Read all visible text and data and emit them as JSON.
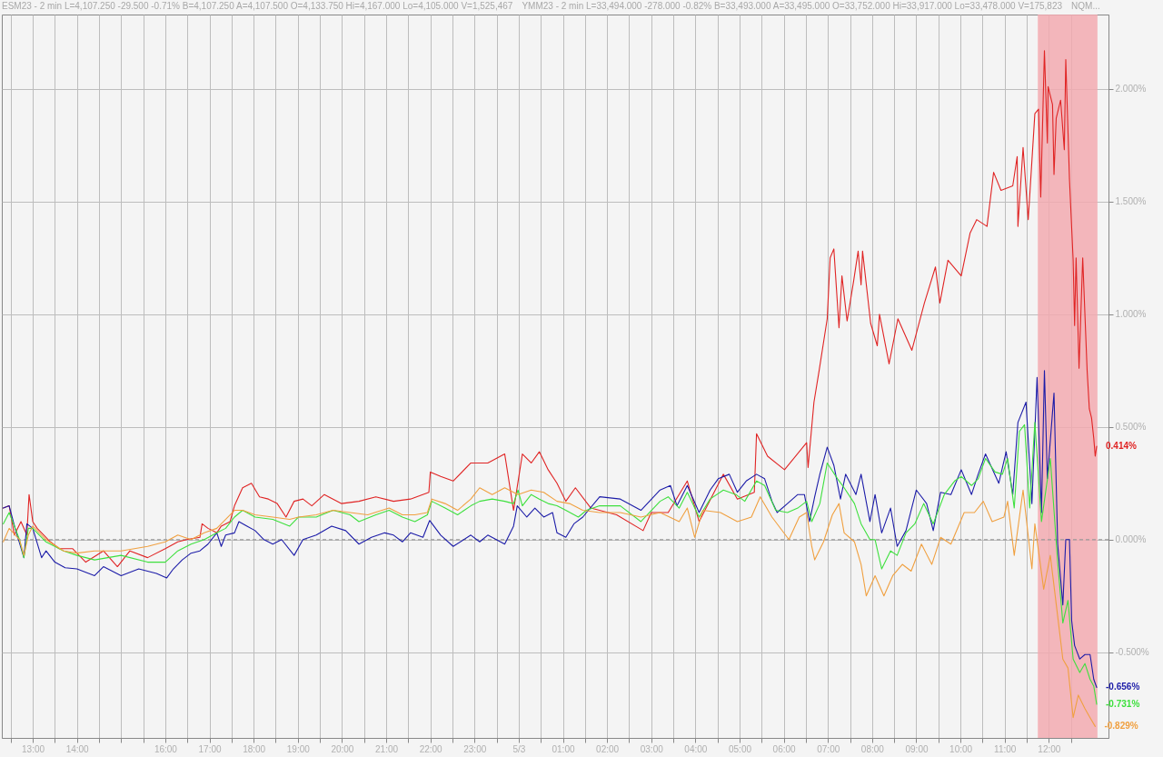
{
  "chart_data": {
    "type": "line",
    "annotations": [
      "ESM23 - 2 min L=4,107.250 -29.500 -0.71% B=4,107.250 A=4,107.500 O=4,133.750 Hi=4,167.000 Lo=4,105.000 V=1,525,467",
      "YMM23 - 2 min L=33,494.000 -278.000 -0.82% B=33,493.000 A=33,495.000 O=33,752.000 Hi=33,917.000 Lo=33,478.000 V=175,823",
      "NQM..."
    ],
    "xlim": [
      "--05-02T12:18",
      "--05-03T13:21"
    ],
    "xticks": [
      {
        "value": "--05-02T12:30",
        "label": null
      },
      {
        "value": "--05-02T13:00",
        "label": "13:00"
      },
      {
        "value": "--05-02T13:30",
        "label": null
      },
      {
        "value": "--05-02T14:00",
        "label": "14:00"
      },
      {
        "value": "--05-02T14:30",
        "label": null
      },
      {
        "value": "--05-02T15:00",
        "label": null
      },
      {
        "value": "--05-02T15:30",
        "label": null
      },
      {
        "value": "--05-02T16:00",
        "label": "16:00"
      },
      {
        "value": "--05-02T16:30",
        "label": null
      },
      {
        "value": "--05-02T17:00",
        "label": "17:00"
      },
      {
        "value": "--05-02T17:30",
        "label": null
      },
      {
        "value": "--05-02T18:00",
        "label": "18:00"
      },
      {
        "value": "--05-02T18:30",
        "label": null
      },
      {
        "value": "--05-02T19:00",
        "label": "19:00"
      },
      {
        "value": "--05-02T19:30",
        "label": null
      },
      {
        "value": "--05-02T20:00",
        "label": "20:00"
      },
      {
        "value": "--05-02T20:30",
        "label": null
      },
      {
        "value": "--05-02T21:00",
        "label": "21:00"
      },
      {
        "value": "--05-02T21:30",
        "label": null
      },
      {
        "value": "--05-02T22:00",
        "label": "22:00"
      },
      {
        "value": "--05-02T22:30",
        "label": null
      },
      {
        "value": "--05-02T23:00",
        "label": "23:00"
      },
      {
        "value": "--05-02T23:30",
        "label": null
      },
      {
        "value": "--05-03T00:00",
        "label": "5/3"
      },
      {
        "value": "--05-03T00:30",
        "label": null
      },
      {
        "value": "--05-03T01:00",
        "label": "01:00"
      },
      {
        "value": "--05-03T01:30",
        "label": null
      },
      {
        "value": "--05-03T02:00",
        "label": "02:00"
      },
      {
        "value": "--05-03T02:30",
        "label": null
      },
      {
        "value": "--05-03T03:00",
        "label": "03:00"
      },
      {
        "value": "--05-03T03:30",
        "label": null
      },
      {
        "value": "--05-03T04:00",
        "label": "04:00"
      },
      {
        "value": "--05-03T04:30",
        "label": null
      },
      {
        "value": "--05-03T05:00",
        "label": "05:00"
      },
      {
        "value": "--05-03T05:30",
        "label": null
      },
      {
        "value": "--05-03T06:00",
        "label": "06:00"
      },
      {
        "value": "--05-03T06:30",
        "label": null
      },
      {
        "value": "--05-03T07:00",
        "label": "07:00"
      },
      {
        "value": "--05-03T07:30",
        "label": null
      },
      {
        "value": "--05-03T08:00",
        "label": "08:00"
      },
      {
        "value": "--05-03T08:30",
        "label": null
      },
      {
        "value": "--05-03T09:00",
        "label": "09:00"
      },
      {
        "value": "--05-03T09:30",
        "label": null
      },
      {
        "value": "--05-03T10:00",
        "label": "10:00"
      },
      {
        "value": "--05-03T10:30",
        "label": null
      },
      {
        "value": "--05-03T11:00",
        "label": "11:00"
      },
      {
        "value": "--05-03T11:30",
        "label": null
      },
      {
        "value": "--05-03T12:00",
        "label": "12:00"
      },
      {
        "value": "--05-03T12:30",
        "label": null
      }
    ],
    "ylim": [
      -0.88,
      2.33
    ],
    "yticks": [
      {
        "value": -0.5,
        "label": "-0.500%"
      },
      {
        "value": 0,
        "label": "0.000%"
      },
      {
        "value": 0.5,
        "label": "0.500%"
      },
      {
        "value": 1,
        "label": "1.000%"
      },
      {
        "value": 1.5,
        "label": "1.500%"
      },
      {
        "value": 2,
        "label": "2.000%"
      }
    ],
    "grid": true,
    "ref_lines": [
      {
        "axis": "y",
        "value": 0,
        "color": "#999999",
        "line_style": "dashed"
      }
    ],
    "bands": [
      {
        "axis": "x",
        "from": "--05-03T11:45",
        "to": "--05-03T13:06",
        "color": "#f2aab0"
      }
    ],
    "series": [
      {
        "color": "#e02424",
        "x": [
          "--05-02T12:20",
          "--05-02T12:28",
          "--05-02T12:35",
          "--05-02T12:44",
          "--05-02T12:52",
          "--05-02T12:55",
          "--05-02T13:00",
          "--05-02T13:06",
          "--05-02T13:24",
          "--05-02T13:36",
          "--05-02T13:54",
          "--05-02T14:12",
          "--05-02T14:36",
          "--05-02T14:55",
          "--05-02T15:12",
          "--05-02T15:36",
          "--05-02T16:00",
          "--05-02T16:17",
          "--05-02T16:29",
          "--05-02T16:47",
          "--05-02T16:50",
          "--05-02T16:58",
          "--05-02T17:10",
          "--05-02T17:16",
          "--05-02T17:28",
          "--05-02T17:34",
          "--05-02T17:45",
          "--05-02T17:57",
          "--05-02T18:08",
          "--05-02T18:20",
          "--05-02T18:32",
          "--05-02T18:44",
          "--05-02T18:55",
          "--05-02T19:07",
          "--05-02T19:19",
          "--05-02T19:36",
          "--05-02T19:59",
          "--05-02T20:23",
          "--05-02T20:46",
          "--05-02T21:10",
          "--05-02T21:33",
          "--05-02T21:58",
          "--05-02T22:00",
          "--05-02T22:14",
          "--05-02T22:31",
          "--05-02T22:55",
          "--05-02T23:18",
          "--05-02T23:41",
          "--05-02T23:53",
          "--05-03T00:05",
          "--05-03T00:17",
          "--05-03T00:28",
          "--05-03T00:40",
          "--05-03T00:52",
          "--05-03T01:04",
          "--05-03T01:17",
          "--05-03T01:38",
          "--05-03T02:13",
          "--05-03T02:49",
          "--05-03T03:00",
          "--05-03T03:23",
          "--05-03T03:49",
          "--05-03T04:05",
          "--05-03T04:38",
          "--05-03T04:57",
          "--05-03T05:20",
          "--05-03T05:23",
          "--05-03T05:38",
          "--05-03T06:01",
          "--05-03T06:31",
          "--05-03T06:33",
          "--05-03T06:41",
          "--05-03T06:48",
          "--05-03T06:59",
          "--05-03T07:03",
          "--05-03T07:08",
          "--05-03T07:15",
          "--05-03T07:19",
          "--05-03T07:26",
          "--05-03T07:35",
          "--05-03T07:41",
          "--05-03T07:45",
          "--05-03T07:47",
          "--05-03T07:58",
          "--05-03T08:07",
          "--05-03T08:10",
          "--05-03T08:23",
          "--05-03T08:35",
          "--05-03T08:54",
          "--05-03T09:11",
          "--05-03T09:26",
          "--05-03T09:32",
          "--05-03T09:43",
          "--05-03T10:01",
          "--05-03T10:13",
          "--05-03T10:22",
          "--05-03T10:36",
          "--05-03T10:45",
          "--05-03T10:55",
          "--05-03T11:11",
          "--05-03T11:17",
          "--05-03T11:18",
          "--05-03T11:25",
          "--05-03T11:32",
          "--05-03T11:41",
          "--05-03T11:46",
          "--05-03T11:49",
          "--05-03T11:54",
          "--05-03T11:58",
          "--05-03T11:59",
          "--05-03T12:05",
          "--05-03T12:07",
          "--05-03T12:10",
          "--05-03T12:16",
          "--05-03T12:21",
          "--05-03T12:23",
          "--05-03T12:28",
          "--05-03T12:33",
          "--05-03T12:35",
          "--05-03T12:37",
          "--05-03T12:41",
          "--05-03T12:46",
          "--05-03T12:52",
          "--05-03T12:55",
          "--05-03T12:58",
          "--05-03T13:01",
          "--05-03T13:03",
          "--05-03T13:05"
        ],
        "values": [
          0.14,
          0.15,
          0.02,
          0.08,
          0.02,
          0.2,
          0.08,
          0.05,
          -0.01,
          -0.04,
          -0.04,
          -0.1,
          -0.05,
          -0.12,
          -0.05,
          -0.08,
          -0.04,
          -0.01,
          0,
          0.01,
          0.07,
          0.05,
          0.03,
          0.06,
          0.08,
          0.15,
          0.23,
          0.25,
          0.19,
          0.18,
          0.16,
          0.1,
          0.17,
          0.18,
          0.15,
          0.2,
          0.16,
          0.17,
          0.19,
          0.17,
          0.18,
          0.21,
          0.3,
          0.28,
          0.26,
          0.34,
          0.34,
          0.38,
          0.13,
          0.38,
          0.34,
          0.39,
          0.31,
          0.25,
          0.17,
          0.23,
          0.14,
          0.11,
          0.04,
          0.12,
          0.12,
          0.26,
          0.08,
          0.29,
          0.18,
          0.21,
          0.47,
          0.37,
          0.31,
          0.43,
          0.32,
          0.61,
          0.75,
          0.98,
          1.25,
          1.29,
          0.94,
          1.17,
          0.97,
          1.15,
          1.28,
          1.13,
          1.28,
          0.96,
          0.86,
          1.0,
          0.78,
          0.98,
          0.84,
          1.05,
          1.21,
          1.05,
          1.24,
          1.17,
          1.36,
          1.42,
          1.39,
          1.63,
          1.55,
          1.57,
          1.7,
          1.39,
          1.74,
          1.42,
          1.89,
          1.91,
          1.52,
          2.17,
          1.76,
          2.01,
          1.93,
          1.62,
          1.87,
          1.95,
          1.73,
          2.13,
          1.6,
          1.24,
          0.95,
          1.25,
          0.76,
          1.25,
          0.75,
          0.58,
          0.54,
          0.45,
          0.37,
          0.414
        ],
        "value_labels": [
          null,
          null,
          null,
          null,
          null,
          null,
          null,
          null,
          null,
          null,
          null,
          null,
          null,
          null,
          null,
          null,
          null,
          null,
          null,
          null,
          null,
          null,
          null,
          null,
          null,
          null,
          null,
          null,
          null,
          null,
          null,
          null,
          null,
          null,
          null,
          null,
          null,
          null,
          null,
          null,
          null,
          null,
          null,
          null,
          null,
          null,
          null,
          null,
          null,
          null,
          null,
          null,
          null,
          null,
          null,
          null,
          null,
          null,
          null,
          null,
          null,
          null,
          null,
          null,
          null,
          null,
          null,
          null,
          null,
          null,
          null,
          null,
          null,
          null,
          null,
          null,
          null,
          null,
          null,
          null,
          null,
          null,
          null,
          null,
          null,
          null,
          null,
          null,
          null,
          null,
          null,
          null,
          null,
          null,
          null,
          null,
          null,
          null,
          null,
          null,
          null,
          null,
          null,
          null,
          null,
          null,
          null,
          null,
          null,
          null,
          null,
          null,
          null,
          null,
          null,
          null,
          null,
          null,
          null,
          null,
          null,
          null,
          null,
          null,
          null,
          null,
          null,
          "0.414%"
        ]
      },
      {
        "color": "#1c1ca8",
        "x": [
          "--05-02T12:20",
          "--05-02T12:28",
          "--05-02T12:36",
          "--05-02T12:48",
          "--05-02T12:52",
          "--05-02T13:00",
          "--05-02T13:12",
          "--05-02T13:18",
          "--05-02T13:30",
          "--05-02T13:44",
          "--05-02T14:00",
          "--05-02T14:24",
          "--05-02T14:36",
          "--05-02T15:00",
          "--05-02T15:24",
          "--05-02T15:48",
          "--05-02T16:02",
          "--05-02T16:11",
          "--05-02T16:23",
          "--05-02T16:35",
          "--05-02T16:47",
          "--05-02T16:58",
          "--05-02T17:10",
          "--05-02T17:16",
          "--05-02T17:22",
          "--05-02T17:34",
          "--05-02T17:40",
          "--05-02T17:51",
          "--05-02T18:02",
          "--05-02T18:14",
          "--05-02T18:26",
          "--05-02T18:38",
          "--05-02T18:55",
          "--05-02T19:07",
          "--05-02T19:25",
          "--05-02T19:46",
          "--05-02T20:05",
          "--05-02T20:23",
          "--05-02T20:40",
          "--05-02T20:58",
          "--05-02T21:10",
          "--05-02T21:22",
          "--05-02T21:33",
          "--05-02T21:50",
          "--05-02T21:59",
          "--05-02T22:14",
          "--05-02T22:31",
          "--05-02T22:55",
          "--05-02T23:07",
          "--05-02T23:18",
          "--05-02T23:41",
          "--05-02T23:53",
          "--05-02T23:58",
          "--05-03T00:11",
          "--05-03T00:22",
          "--05-03T00:34",
          "--05-03T00:46",
          "--05-03T00:52",
          "--05-03T01:04",
          "--05-03T01:15",
          "--05-03T01:27",
          "--05-03T01:50",
          "--05-03T02:18",
          "--05-03T02:46",
          "--05-03T03:12",
          "--05-03T03:26",
          "--05-03T03:35",
          "--05-03T03:49",
          "--05-03T04:05",
          "--05-03T04:20",
          "--05-03T04:31",
          "--05-03T04:46",
          "--05-03T04:57",
          "--05-03T05:09",
          "--05-03T05:23",
          "--05-03T05:34",
          "--05-03T05:44",
          "--05-03T05:51",
          "--05-03T06:05",
          "--05-03T06:19",
          "--05-03T06:28",
          "--05-03T06:35",
          "--05-03T06:42",
          "--05-03T06:49",
          "--05-03T06:59",
          "--05-03T07:08",
          "--05-03T07:17",
          "--05-03T07:24",
          "--05-03T07:38",
          "--05-03T07:45",
          "--05-03T07:57",
          "--05-03T08:04",
          "--05-03T08:13",
          "--05-03T08:25",
          "--05-03T08:34",
          "--05-03T08:46",
          "--05-03T09:00",
          "--05-03T09:14",
          "--05-03T09:23",
          "--05-03T09:33",
          "--05-03T09:47",
          "--05-03T10:01",
          "--05-03T10:15",
          "--05-03T10:24",
          "--05-03T10:34",
          "--05-03T10:52",
          "--05-03T11:02",
          "--05-03T11:11",
          "--05-03T11:18",
          "--05-03T11:29",
          "--05-03T11:37",
          "--05-03T11:44",
          "--05-03T11:50",
          "--05-03T11:54",
          "--05-03T11:58",
          "--05-03T12:07",
          "--05-03T12:12",
          "--05-03T12:19",
          "--05-03T12:23",
          "--05-03T12:28",
          "--05-03T12:31",
          "--05-03T12:35",
          "--05-03T12:42",
          "--05-03T12:49",
          "--05-03T12:56",
          "--05-03T13:01",
          "--05-03T13:05"
        ],
        "values": [
          0.14,
          0.15,
          0.05,
          -0.08,
          0.07,
          0.05,
          -0.08,
          -0.05,
          -0.1,
          -0.125,
          -0.13,
          -0.16,
          -0.12,
          -0.16,
          -0.13,
          -0.15,
          -0.17,
          -0.13,
          -0.09,
          -0.06,
          -0.05,
          -0.02,
          0.03,
          -0.03,
          0.02,
          0.03,
          0.08,
          0.06,
          0.04,
          0,
          -0.02,
          0,
          -0.07,
          0,
          0.02,
          0.06,
          0.04,
          -0.02,
          0.01,
          0.03,
          0.02,
          -0.01,
          0.03,
          0.01,
          0.085,
          0.02,
          -0.03,
          0.02,
          -0.01,
          0.02,
          -0.02,
          0.06,
          0.15,
          0.1,
          0.14,
          0.1,
          0.12,
          0.03,
          0.01,
          0.07,
          0.1,
          0.19,
          0.18,
          0.13,
          0.22,
          0.24,
          0.15,
          0.24,
          0.12,
          0.22,
          0.27,
          0.29,
          0.21,
          0.26,
          0.29,
          0.27,
          0.17,
          0.12,
          0.16,
          0.2,
          0.2,
          0.08,
          0.19,
          0.29,
          0.41,
          0.33,
          0.18,
          0.29,
          0.2,
          0.29,
          0.08,
          0.2,
          0.03,
          0.14,
          -0.03,
          0.04,
          0.22,
          0.16,
          0.04,
          0.21,
          0.2,
          0.31,
          0.2,
          0.29,
          0.38,
          0.25,
          0.39,
          0.2,
          0.52,
          0.61,
          0.16,
          0.72,
          0.12,
          0.75,
          0.27,
          0.65,
          -0.02,
          -0.29,
          0,
          0,
          -0.36,
          -0.47,
          -0.53,
          -0.51,
          -0.51,
          -0.62,
          -0.656
        ],
        "value_labels": [
          null,
          null,
          null,
          null,
          null,
          null,
          null,
          null,
          null,
          null,
          null,
          null,
          null,
          null,
          null,
          null,
          null,
          null,
          null,
          null,
          null,
          null,
          null,
          null,
          null,
          null,
          null,
          null,
          null,
          null,
          null,
          null,
          null,
          null,
          null,
          null,
          null,
          null,
          null,
          null,
          null,
          null,
          null,
          null,
          null,
          null,
          null,
          null,
          null,
          null,
          null,
          null,
          null,
          null,
          null,
          null,
          null,
          null,
          null,
          null,
          null,
          null,
          null,
          null,
          null,
          null,
          null,
          null,
          null,
          null,
          null,
          null,
          null,
          null,
          null,
          null,
          null,
          null,
          null,
          null,
          null,
          null,
          null,
          null,
          null,
          null,
          null,
          null,
          null,
          null,
          null,
          null,
          null,
          null,
          null,
          null,
          null,
          null,
          null,
          null,
          null,
          null,
          null,
          null,
          null,
          null,
          null,
          null,
          null,
          null,
          null,
          null,
          null,
          null,
          null,
          null,
          null,
          null,
          null,
          null,
          null,
          null,
          null,
          null,
          null,
          null,
          "-0.656%"
        ]
      },
      {
        "color": "#3ee03e",
        "x": [
          "--05-02T12:20",
          "--05-02T12:28",
          "--05-02T12:42",
          "--05-02T12:48",
          "--05-02T12:54",
          "--05-02T13:00",
          "--05-02T13:18",
          "--05-02T13:42",
          "--05-02T14:00",
          "--05-02T14:24",
          "--05-02T15:00",
          "--05-02T15:36",
          "--05-02T16:00",
          "--05-02T16:17",
          "--05-02T16:35",
          "--05-02T16:53",
          "--05-02T17:10",
          "--05-02T17:22",
          "--05-02T17:34",
          "--05-02T17:45",
          "--05-02T18:02",
          "--05-02T18:26",
          "--05-02T18:49",
          "--05-02T19:01",
          "--05-02T19:25",
          "--05-02T19:48",
          "--05-02T20:11",
          "--05-02T20:23",
          "--05-02T20:46",
          "--05-02T21:04",
          "--05-02T21:22",
          "--05-02T21:39",
          "--05-02T21:56",
          "--05-02T22:02",
          "--05-02T22:20",
          "--05-02T22:37",
          "--05-02T22:55",
          "--05-02T23:07",
          "--05-02T23:24",
          "--05-02T23:41",
          "--05-02T23:53",
          "--05-02T23:59",
          "--05-03T00:05",
          "--05-03T00:17",
          "--05-03T00:28",
          "--05-03T00:40",
          "--05-03T00:52",
          "--05-03T01:04",
          "--05-03T01:21",
          "--05-03T01:32",
          "--05-03T01:50",
          "--05-03T02:18",
          "--05-03T02:46",
          "--05-03T03:12",
          "--05-03T03:23",
          "--05-03T03:38",
          "--05-03T03:49",
          "--05-03T04:05",
          "--05-03T04:20",
          "--05-03T04:38",
          "--05-03T04:55",
          "--05-03T05:07",
          "--05-03T05:23",
          "--05-03T05:34",
          "--05-03T05:49",
          "--05-03T06:05",
          "--05-03T06:19",
          "--05-03T06:31",
          "--05-03T06:38",
          "--05-03T06:49",
          "--05-03T06:59",
          "--05-03T07:13",
          "--05-03T07:22",
          "--05-03T07:36",
          "--05-03T07:45",
          "--05-03T07:57",
          "--05-03T08:04",
          "--05-03T08:13",
          "--05-03T08:25",
          "--05-03T08:34",
          "--05-03T08:46",
          "--05-03T08:58",
          "--05-03T09:10",
          "--05-03T09:23",
          "--05-03T09:38",
          "--05-03T09:52",
          "--05-03T10:01",
          "--05-03T10:15",
          "--05-03T10:24",
          "--05-03T10:34",
          "--05-03T10:47",
          "--05-03T10:57",
          "--05-03T11:04",
          "--05-03T11:13",
          "--05-03T11:20",
          "--05-03T11:27",
          "--05-03T11:34",
          "--05-03T11:41",
          "--05-03T11:50",
          "--05-03T12:02",
          "--05-03T12:12",
          "--05-03T12:19",
          "--05-03T12:26",
          "--05-03T12:33",
          "--05-03T12:42",
          "--05-03T12:49",
          "--05-03T12:56",
          "--05-03T13:01",
          "--05-03T13:05"
        ],
        "values": [
          0.07,
          0.12,
          0,
          -0.08,
          0.05,
          0.05,
          -0.01,
          -0.05,
          -0.07,
          -0.09,
          -0.07,
          -0.1,
          -0.1,
          -0.05,
          -0.02,
          0,
          0.03,
          0.05,
          0.1,
          0.13,
          0.1,
          0.09,
          0.06,
          0.1,
          0.1,
          0.13,
          0.11,
          0.08,
          0.11,
          0.13,
          0.1,
          0.08,
          0.11,
          0.17,
          0.14,
          0.11,
          0.15,
          0.17,
          0.18,
          0.17,
          0.16,
          0.22,
          0.15,
          0.2,
          0.18,
          0.16,
          0.15,
          0.13,
          0.1,
          0.13,
          0.15,
          0.15,
          0.08,
          0.17,
          0.19,
          0.14,
          0.21,
          0.1,
          0.18,
          0.22,
          0.2,
          0.17,
          0.26,
          0.24,
          0.13,
          0.12,
          0.14,
          0.17,
          0.08,
          0.16,
          0.34,
          0.27,
          0.23,
          0.16,
          0.07,
          0,
          0,
          -0.13,
          -0.05,
          -0.07,
          0.03,
          0.07,
          0.16,
          0.07,
          0.2,
          0.26,
          0.28,
          0.24,
          0.27,
          0.36,
          0.3,
          0.29,
          0.36,
          0.14,
          0.48,
          0.51,
          0.14,
          0.52,
          0.08,
          0.36,
          -0.1,
          -0.37,
          -0.27,
          -0.53,
          -0.59,
          -0.55,
          -0.62,
          -0.65,
          -0.731
        ],
        "value_labels": [
          null,
          null,
          null,
          null,
          null,
          null,
          null,
          null,
          null,
          null,
          null,
          null,
          null,
          null,
          null,
          null,
          null,
          null,
          null,
          null,
          null,
          null,
          null,
          null,
          null,
          null,
          null,
          null,
          null,
          null,
          null,
          null,
          null,
          null,
          null,
          null,
          null,
          null,
          null,
          null,
          null,
          null,
          null,
          null,
          null,
          null,
          null,
          null,
          null,
          null,
          null,
          null,
          null,
          null,
          null,
          null,
          null,
          null,
          null,
          null,
          null,
          null,
          null,
          null,
          null,
          null,
          null,
          null,
          null,
          null,
          null,
          null,
          null,
          null,
          null,
          null,
          null,
          null,
          null,
          null,
          null,
          null,
          null,
          null,
          null,
          null,
          null,
          null,
          null,
          null,
          null,
          null,
          null,
          null,
          null,
          null,
          null,
          null,
          null,
          null,
          null,
          null,
          null,
          null,
          null,
          null,
          null,
          null,
          "-0.731%"
        ]
      },
      {
        "color": "#f0a040",
        "x": [
          "--05-02T12:20",
          "--05-02T12:28",
          "--05-02T12:42",
          "--05-02T12:48",
          "--05-02T12:54",
          "--05-02T13:00",
          "--05-02T13:18",
          "--05-02T13:42",
          "--05-02T14:00",
          "--05-02T14:24",
          "--05-02T15:00",
          "--05-02T15:36",
          "--05-02T16:00",
          "--05-02T16:17",
          "--05-02T16:35",
          "--05-02T16:53",
          "--05-02T17:10",
          "--05-02T17:34",
          "--05-02T17:45",
          "--05-02T18:02",
          "--05-02T18:26",
          "--05-02T18:49",
          "--05-02T19:01",
          "--05-02T19:25",
          "--05-02T19:48",
          "--05-02T20:11",
          "--05-02T20:35",
          "--05-02T21:04",
          "--05-02T21:22",
          "--05-02T21:39",
          "--05-02T21:56",
          "--05-02T22:02",
          "--05-02T22:20",
          "--05-02T22:37",
          "--05-02T22:55",
          "--05-02T23:07",
          "--05-02T23:24",
          "--05-02T23:41",
          "--05-02T23:59",
          "--05-03T00:17",
          "--05-03T00:34",
          "--05-03T00:52",
          "--05-03T01:09",
          "--05-03T01:27",
          "--05-03T01:50",
          "--05-03T02:18",
          "--05-03T02:46",
          "--05-03T03:12",
          "--05-03T03:38",
          "--05-03T03:49",
          "--05-03T03:59",
          "--05-03T04:10",
          "--05-03T04:34",
          "--05-03T04:57",
          "--05-03T05:16",
          "--05-03T05:28",
          "--05-03T05:44",
          "--05-03T06:07",
          "--05-03T06:21",
          "--05-03T06:31",
          "--05-03T06:38",
          "--05-03T06:42",
          "--05-03T06:54",
          "--05-03T07:06",
          "--05-03T07:15",
          "--05-03T07:22",
          "--05-03T07:36",
          "--05-03T07:45",
          "--05-03T07:52",
          "--05-03T08:04",
          "--05-03T08:16",
          "--05-03T08:28",
          "--05-03T08:41",
          "--05-03T08:53",
          "--05-03T09:07",
          "--05-03T09:21",
          "--05-03T09:33",
          "--05-03T09:47",
          "--05-03T10:05",
          "--05-03T10:19",
          "--05-03T10:31",
          "--05-03T10:43",
          "--05-03T10:59",
          "--05-03T11:04",
          "--05-03T11:13",
          "--05-03T11:25",
          "--05-03T11:37",
          "--05-03T11:41",
          "--05-03T11:53",
          "--05-03T12:02",
          "--05-03T12:12",
          "--05-03T12:19",
          "--05-03T12:26",
          "--05-03T12:33",
          "--05-03T12:40",
          "--05-03T12:49",
          "--05-03T12:56",
          "--05-03T13:03"
        ],
        "values": [
          -0.01,
          0.05,
          0,
          -0.07,
          0.02,
          0.06,
          0,
          -0.05,
          -0.06,
          -0.05,
          -0.05,
          -0.03,
          -0.01,
          0.02,
          0,
          0.03,
          0.05,
          0.13,
          0.13,
          0.11,
          0.1,
          0.09,
          0.1,
          0.11,
          0.13,
          0.12,
          0.11,
          0.14,
          0.11,
          0.11,
          0.12,
          0.18,
          0.16,
          0.13,
          0.18,
          0.23,
          0.2,
          0.23,
          0.2,
          0.22,
          0.21,
          0.17,
          0.16,
          0.13,
          0.12,
          0.12,
          0.1,
          0.12,
          0.08,
          0.14,
          0.01,
          0.13,
          0.12,
          0.08,
          0.1,
          0.19,
          0.1,
          0,
          0.1,
          0.12,
          -0.03,
          -0.09,
          -0.01,
          0.11,
          0.16,
          0.03,
          -0.01,
          -0.11,
          -0.25,
          -0.16,
          -0.25,
          -0.16,
          -0.11,
          -0.14,
          -0.02,
          -0.11,
          0.01,
          -0.02,
          0.12,
          0.12,
          0.17,
          0.08,
          0.1,
          0.17,
          -0.07,
          0.22,
          -0.13,
          0.07,
          -0.22,
          -0.07,
          -0.34,
          -0.53,
          -0.57,
          -0.79,
          -0.69,
          -0.75,
          -0.79,
          -0.829
        ],
        "value_labels": [
          null,
          null,
          null,
          null,
          null,
          null,
          null,
          null,
          null,
          null,
          null,
          null,
          null,
          null,
          null,
          null,
          null,
          null,
          null,
          null,
          null,
          null,
          null,
          null,
          null,
          null,
          null,
          null,
          null,
          null,
          null,
          null,
          null,
          null,
          null,
          null,
          null,
          null,
          null,
          null,
          null,
          null,
          null,
          null,
          null,
          null,
          null,
          null,
          null,
          null,
          null,
          null,
          null,
          null,
          null,
          null,
          null,
          null,
          null,
          null,
          null,
          null,
          null,
          null,
          null,
          null,
          null,
          null,
          null,
          null,
          null,
          null,
          null,
          null,
          null,
          null,
          null,
          null,
          null,
          null,
          null,
          null,
          null,
          null,
          null,
          null,
          null,
          null,
          null,
          null,
          null,
          null,
          null,
          null,
          null,
          null,
          null,
          "-0.829%"
        ]
      }
    ]
  }
}
